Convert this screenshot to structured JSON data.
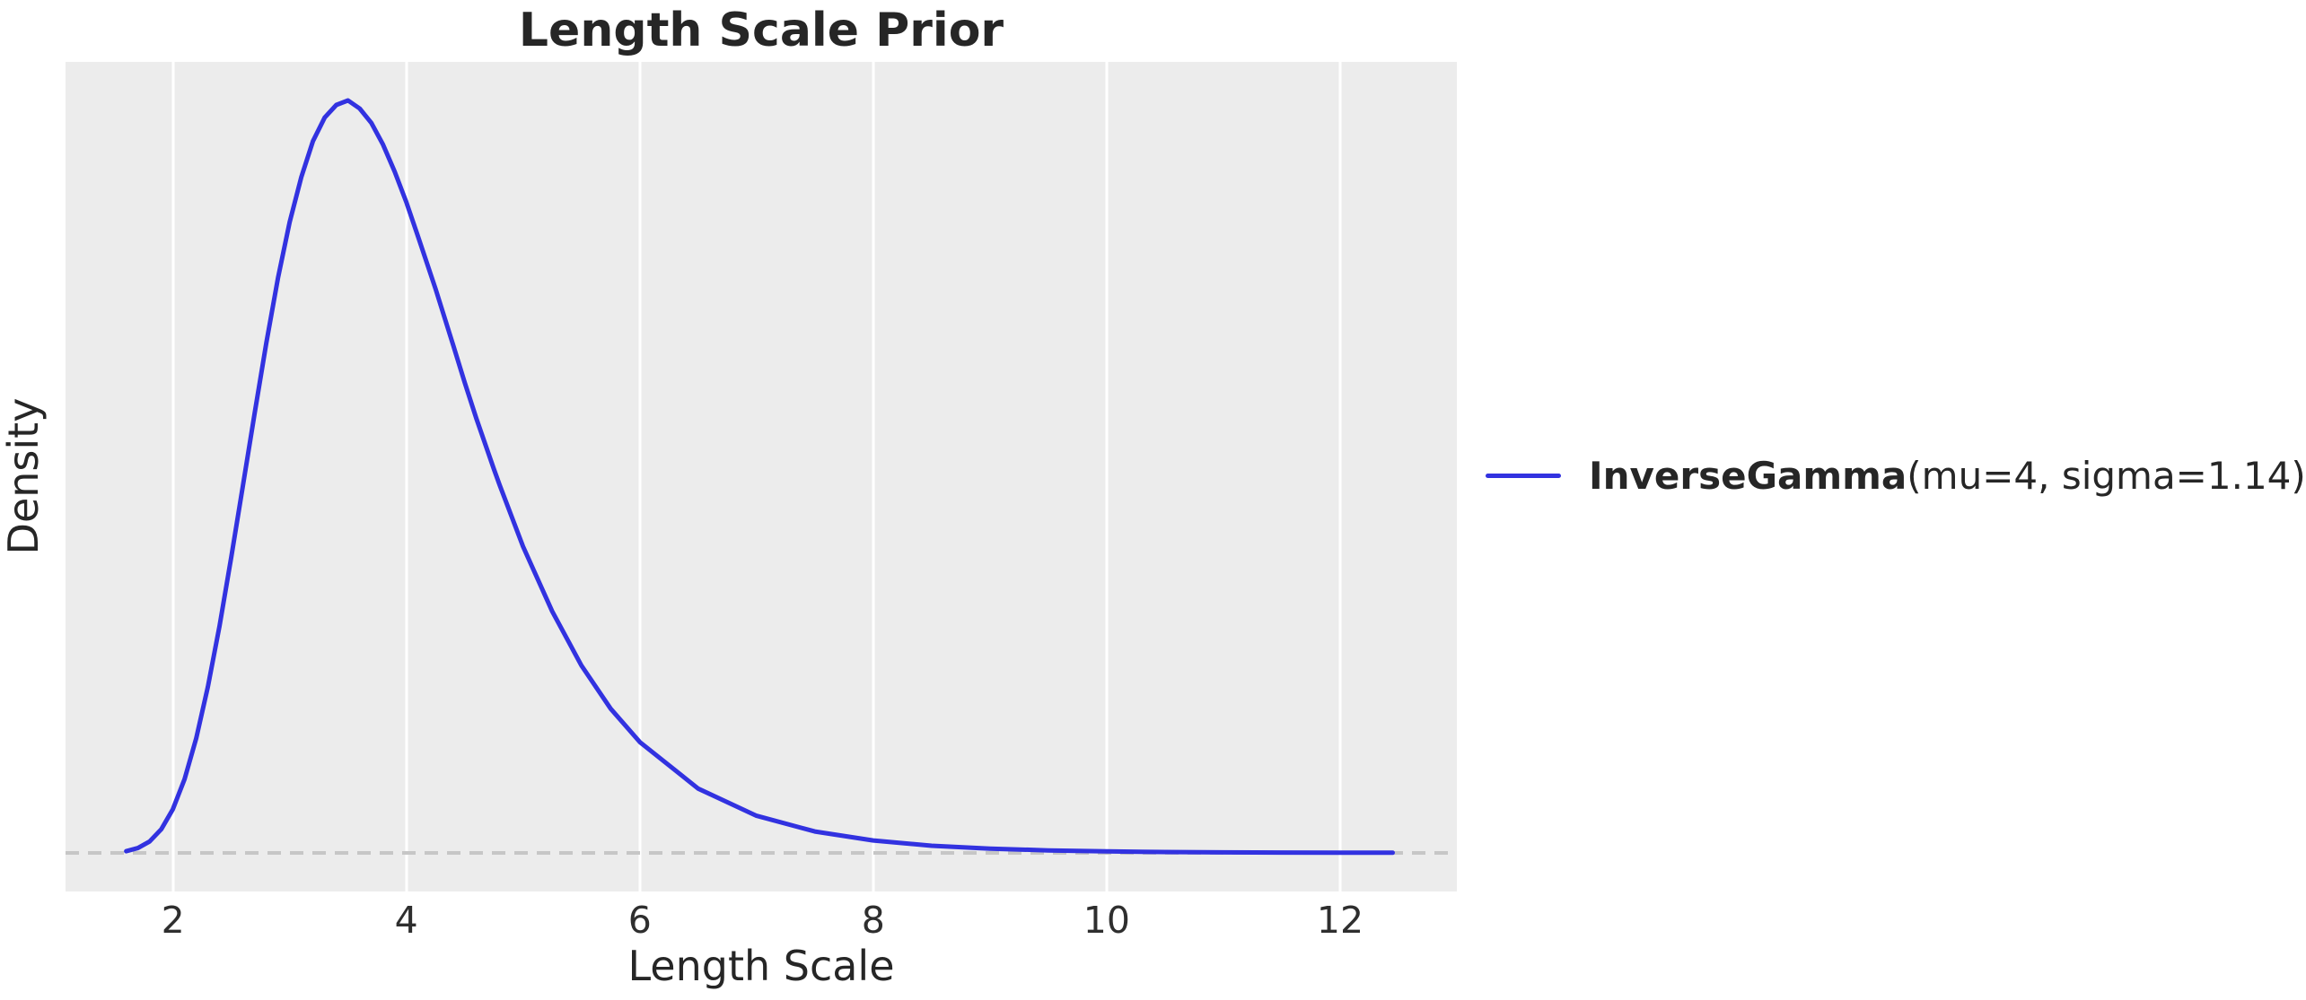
{
  "figure": {
    "title": "Length Scale Prior",
    "xlabel": "Length Scale",
    "ylabel": "Density"
  },
  "legend": {
    "position": "center-right-outside",
    "entries": [
      {
        "label_bold": "InverseGamma",
        "label_regular": "(mu=4, sigma=1.14)",
        "color": "#3232e0"
      }
    ]
  },
  "colors": {
    "figure_background": "#ffffff",
    "plot_background": "#ececec",
    "grid": "#ffffff",
    "curve": "#3232e0",
    "zero_line": "#c6c6c6",
    "text": "#262626"
  },
  "chart_data": {
    "type": "line",
    "title": "Length Scale Prior",
    "xlabel": "Length Scale",
    "ylabel": "Density",
    "xlim": [
      1.08,
      13.0
    ],
    "ylim": [
      -0.0214,
      0.4389
    ],
    "x_ticks": [
      2,
      4,
      6,
      8,
      10,
      12
    ],
    "y_ticks": [],
    "grid": "vertical-only",
    "zero_line": {
      "y": 0,
      "style": "dashed",
      "color": "#c6c6c6"
    },
    "series": [
      {
        "name": "InverseGamma(mu=4, sigma=1.14)",
        "distribution": "InverseGamma",
        "params": {
          "mu": 4,
          "sigma": 1.14
        },
        "color": "#3232e0",
        "peak": {
          "x": 3.48,
          "y": 0.4175
        },
        "x": [
          1.6,
          1.7,
          1.8,
          1.9,
          2.0,
          2.1,
          2.2,
          2.3,
          2.4,
          2.5,
          2.6,
          2.7,
          2.8,
          2.9,
          3.0,
          3.1,
          3.2,
          3.3,
          3.4,
          3.5,
          3.6,
          3.7,
          3.8,
          3.9,
          4.0,
          4.1,
          4.25,
          4.4,
          4.5,
          4.6,
          4.75,
          4.8,
          5.0,
          5.25,
          5.5,
          5.75,
          6.0,
          6.5,
          7.0,
          7.5,
          8.0,
          8.5,
          9.0,
          9.5,
          10.0,
          10.5,
          11.0,
          11.5,
          12.0,
          12.45
        ],
        "y": [
          0.00095,
          0.0027,
          0.0063,
          0.0131,
          0.0243,
          0.0409,
          0.0636,
          0.0922,
          0.126,
          0.164,
          0.204,
          0.244,
          0.283,
          0.319,
          0.35,
          0.375,
          0.395,
          0.408,
          0.415,
          0.4175,
          0.413,
          0.405,
          0.393,
          0.378,
          0.361,
          0.342,
          0.313,
          0.282,
          0.261,
          0.241,
          0.213,
          0.204,
          0.17,
          0.134,
          0.104,
          0.08,
          0.0615,
          0.0357,
          0.0206,
          0.0119,
          0.0069,
          0.004,
          0.0024,
          0.0014,
          0.00086,
          0.00052,
          0.00032,
          0.0002,
          0.00013,
          9e-05
        ]
      }
    ]
  }
}
